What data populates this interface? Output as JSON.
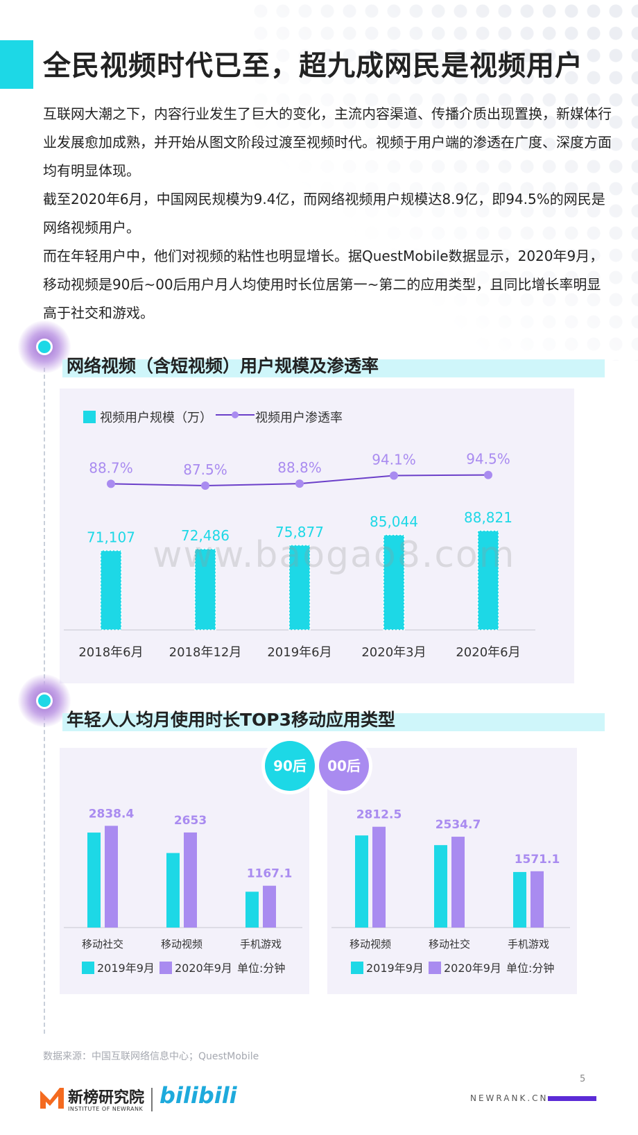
{
  "page": {
    "title": "全民视频时代已至，超九成网民是视频用户",
    "paragraphs": [
      "互联网大潮之下，内容行业发生了巨大的变化，主流内容渠道、传播介质出现置换，新媒体行业发展愈加成熟，并开始从图文阶段过渡至视频时代。视频于用户端的渗透在广度、深度方面均有明显体现。",
      "截至2020年6月，中国网民规模为9.4亿，而网络视频用户规模达8.9亿，即94.5%的网民是网络视频用户。",
      "而在年轻用户中，他们对视频的粘性也明显增长。据QuestMobile数据显示，2020年9月，移动视频是90后~00后用户月人均使用时长位居第一~第二的应用类型，且同比增长率明显高于社交和游戏。"
    ],
    "watermark": "www.baogao8.com",
    "source": "数据来源：中国互联网络信息中心；QuestMobile",
    "page_number": "5",
    "logo_name": "新榜研究院",
    "logo_sub": "INSTITUTE OF NEWRANK",
    "partner_logo": "bilibili",
    "site": "NEWRANK.CN"
  },
  "colors": {
    "accent_cyan": "#1dd8e6",
    "accent_purple": "#a98bf0",
    "line_purple": "#6b3fc9",
    "panel_bg": "#f3f1fa"
  },
  "chart_data": [
    {
      "type": "bar",
      "title": "网络视频（含短视频）用户规模及渗透率",
      "categories": [
        "2018年6月",
        "2018年12月",
        "2019年6月",
        "2020年3月",
        "2020年6月"
      ],
      "series": [
        {
          "name": "视频用户规模（万）",
          "type": "bar",
          "values": [
            71107,
            72486,
            75877,
            85044,
            88821
          ],
          "labels": [
            "71,107",
            "72,486",
            "75,877",
            "85,044",
            "88,821"
          ]
        },
        {
          "name": "视频用户渗透率",
          "type": "line",
          "values": [
            88.7,
            87.5,
            88.8,
            94.1,
            94.5
          ],
          "labels": [
            "88.7%",
            "87.5%",
            "88.8%",
            "94.1%",
            "94.5%"
          ]
        }
      ],
      "legend": "top-left"
    },
    {
      "type": "bar",
      "title": "年轻人人均月使用时长TOP3移动应用类型",
      "group": "90后",
      "unit_label": "单位:分钟",
      "categories": [
        "移动社交",
        "移动视频",
        "手机游戏"
      ],
      "series": [
        {
          "name": "2019年9月",
          "values": [
            2650,
            2080,
            1000
          ]
        },
        {
          "name": "2020年9月",
          "values": [
            2838.4,
            2653,
            1167.1
          ],
          "labels": [
            "2838.4",
            "2653",
            "1167.1"
          ]
        }
      ],
      "legend": "bottom"
    },
    {
      "type": "bar",
      "title": "年轻人人均月使用时长TOP3移动应用类型",
      "group": "00后",
      "unit_label": "单位:分钟",
      "categories": [
        "移动视频",
        "移动社交",
        "手机游戏"
      ],
      "series": [
        {
          "name": "2019年9月",
          "values": [
            2570,
            2300,
            1550
          ]
        },
        {
          "name": "2020年9月",
          "values": [
            2812.5,
            2534.7,
            1571.1
          ],
          "labels": [
            "2812.5",
            "2534.7",
            "1571.1"
          ]
        }
      ],
      "legend": "bottom"
    }
  ]
}
